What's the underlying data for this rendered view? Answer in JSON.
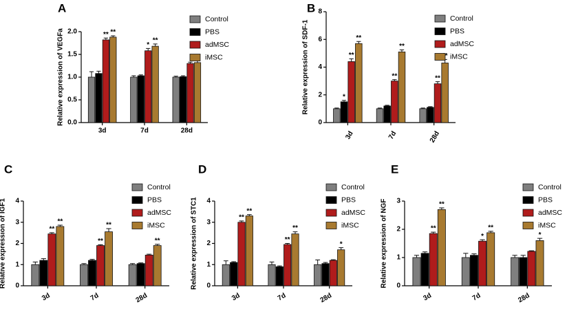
{
  "chart_data": [
    {
      "type": "bar",
      "panel": "A",
      "y_label": "Relative expression of VEGFa",
      "categories": [
        "3d",
        "7d",
        "28d"
      ],
      "ylim": [
        0,
        2
      ],
      "yticks": [
        {
          "value": 0,
          "label": "0.0"
        },
        0.5,
        {
          "value": 1,
          "label": "1.0"
        },
        1.5,
        {
          "value": 2,
          "label": "2.0"
        }
      ],
      "series": [
        {
          "name": "Control",
          "color": "#7f7f7f",
          "values": [
            1.0,
            1.0,
            1.0
          ],
          "errors": [
            0.12,
            0.03,
            0.02
          ],
          "annotations": [
            null,
            null,
            null
          ]
        },
        {
          "name": "PBS",
          "color": "#000000",
          "values": [
            1.08,
            1.03,
            1.01
          ],
          "errors": [
            0.05,
            0.02,
            0.02
          ],
          "annotations": [
            null,
            null,
            null
          ]
        },
        {
          "name": "adMSC",
          "color": "#b01c1c",
          "values": [
            1.82,
            1.58,
            1.3
          ],
          "errors": [
            0.04,
            0.05,
            0.03
          ],
          "annotations": [
            "**",
            "*",
            null
          ]
        },
        {
          "name": "iMSC",
          "color": "#a87a30",
          "values": [
            1.88,
            1.68,
            1.32
          ],
          "errors": [
            0.03,
            0.05,
            0.07
          ],
          "annotations": [
            "**",
            "**",
            null
          ]
        }
      ]
    },
    {
      "type": "bar",
      "panel": "B",
      "y_label": "Relative expression of SDF-1",
      "categories": [
        "3d",
        "7d",
        "28d"
      ],
      "ylim": [
        0,
        8
      ],
      "yticks": [
        0,
        2,
        4,
        6,
        8
      ],
      "series": [
        {
          "name": "Control",
          "color": "#7f7f7f",
          "values": [
            1.0,
            1.0,
            1.0
          ],
          "errors": [
            0.05,
            0.05,
            0.05
          ],
          "annotations": [
            null,
            null,
            null
          ]
        },
        {
          "name": "PBS",
          "color": "#000000",
          "values": [
            1.5,
            1.2,
            1.1
          ],
          "errors": [
            0.1,
            0.05,
            0.05
          ],
          "annotations": [
            "*",
            null,
            null
          ]
        },
        {
          "name": "adMSC",
          "color": "#b01c1c",
          "values": [
            4.4,
            3.0,
            2.8
          ],
          "errors": [
            0.2,
            0.1,
            0.15
          ],
          "annotations": [
            "**",
            "**",
            "**"
          ]
        },
        {
          "name": "iMSC",
          "color": "#a87a30",
          "values": [
            5.7,
            5.1,
            4.3
          ],
          "errors": [
            0.15,
            0.15,
            0.25
          ],
          "annotations": [
            "**",
            "**",
            "**"
          ]
        }
      ]
    },
    {
      "type": "bar",
      "panel": "C",
      "y_label": "Relative expression of IGF1",
      "categories": [
        "3d",
        "7d",
        "28d"
      ],
      "ylim": [
        0,
        4
      ],
      "yticks": [
        0,
        1,
        2,
        3,
        4
      ],
      "series": [
        {
          "name": "Control",
          "color": "#7f7f7f",
          "values": [
            1.0,
            1.0,
            1.0
          ],
          "errors": [
            0.12,
            0.05,
            0.05
          ],
          "annotations": [
            null,
            null,
            null
          ]
        },
        {
          "name": "PBS",
          "color": "#000000",
          "values": [
            1.2,
            1.2,
            1.05
          ],
          "errors": [
            0.08,
            0.05,
            0.03
          ],
          "annotations": [
            null,
            null,
            null
          ]
        },
        {
          "name": "adMSC",
          "color": "#b01c1c",
          "values": [
            2.45,
            1.9,
            1.45
          ],
          "errors": [
            0.06,
            0.04,
            0.04
          ],
          "annotations": [
            "**",
            "**",
            null
          ]
        },
        {
          "name": "iMSC",
          "color": "#a87a30",
          "values": [
            2.8,
            2.55,
            1.9
          ],
          "errors": [
            0.06,
            0.15,
            0.06
          ],
          "annotations": [
            "**",
            "**",
            "**"
          ]
        }
      ]
    },
    {
      "type": "bar",
      "panel": "D",
      "y_label": "Relative expression of STC1",
      "categories": [
        "3d",
        "7d",
        "28d"
      ],
      "ylim": [
        0,
        4
      ],
      "yticks": [
        0,
        1,
        2,
        3,
        4
      ],
      "series": [
        {
          "name": "Control",
          "color": "#7f7f7f",
          "values": [
            1.0,
            1.0,
            1.0
          ],
          "errors": [
            0.18,
            0.12,
            0.22
          ],
          "annotations": [
            null,
            null,
            null
          ]
        },
        {
          "name": "PBS",
          "color": "#000000",
          "values": [
            1.1,
            0.9,
            1.05
          ],
          "errors": [
            0.04,
            0.04,
            0.05
          ],
          "annotations": [
            null,
            null,
            null
          ]
        },
        {
          "name": "adMSC",
          "color": "#b01c1c",
          "values": [
            3.0,
            1.95,
            1.2
          ],
          "errors": [
            0.06,
            0.05,
            0.03
          ],
          "annotations": [
            "**",
            "**",
            null
          ]
        },
        {
          "name": "iMSC",
          "color": "#a87a30",
          "values": [
            3.3,
            2.45,
            1.7
          ],
          "errors": [
            0.06,
            0.1,
            0.1
          ],
          "annotations": [
            "**",
            "**",
            "*"
          ]
        }
      ]
    },
    {
      "type": "bar",
      "panel": "E",
      "y_label": "Relative expression of NGF",
      "categories": [
        "3d",
        "7d",
        "28d"
      ],
      "ylim": [
        0,
        3
      ],
      "yticks": [
        0,
        1,
        2,
        3
      ],
      "series": [
        {
          "name": "Control",
          "color": "#7f7f7f",
          "values": [
            1.0,
            1.0,
            1.0
          ],
          "errors": [
            0.08,
            0.15,
            0.08
          ],
          "annotations": [
            null,
            null,
            null
          ]
        },
        {
          "name": "PBS",
          "color": "#000000",
          "values": [
            1.15,
            1.08,
            1.0
          ],
          "errors": [
            0.05,
            0.05,
            0.08
          ],
          "annotations": [
            null,
            null,
            null
          ]
        },
        {
          "name": "adMSC",
          "color": "#b01c1c",
          "values": [
            1.85,
            1.58,
            1.22
          ],
          "errors": [
            0.05,
            0.05,
            0.02
          ],
          "annotations": [
            "**",
            "*",
            null
          ]
        },
        {
          "name": "iMSC",
          "color": "#a87a30",
          "values": [
            2.7,
            1.88,
            1.6
          ],
          "errors": [
            0.06,
            0.05,
            0.08
          ],
          "annotations": [
            "**",
            "**",
            "*"
          ]
        }
      ]
    }
  ]
}
